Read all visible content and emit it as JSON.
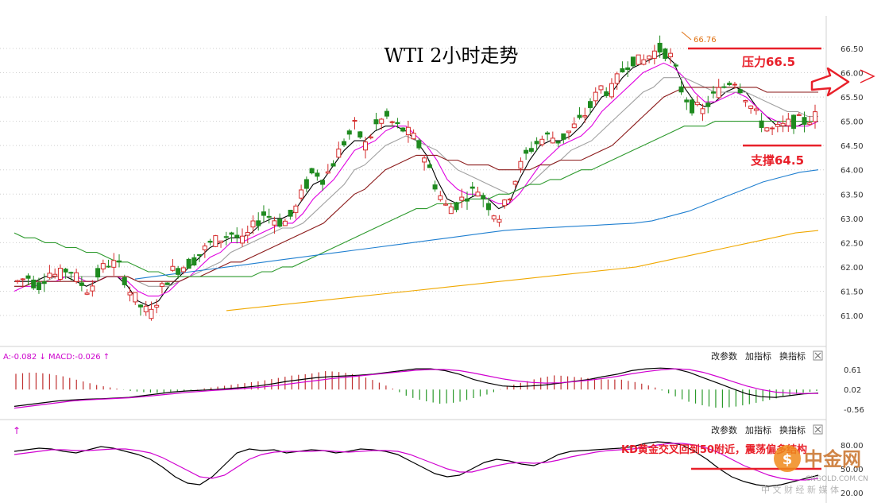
{
  "chart_data": [
    {
      "type": "candlestick",
      "title": "WTI 2小时走势",
      "y_ticks": [
        "66.50",
        "66.00",
        "65.50",
        "65.00",
        "64.50",
        "64.00",
        "63.50",
        "63.00",
        "62.50",
        "62.00",
        "61.50",
        "61.00"
      ],
      "ylim": [
        60.6,
        67.0
      ],
      "grid": true,
      "high_marker": "66.76",
      "resistance": {
        "label": "压力66.5",
        "value": 66.5
      },
      "support": {
        "label": "支撑64.5",
        "value": 64.5
      },
      "close_path": [
        61.7,
        61.8,
        61.6,
        61.9,
        61.8,
        62.0,
        61.7,
        61.5,
        61.9,
        62.1,
        62.0,
        61.5,
        61.2,
        61.0,
        61.5,
        61.9,
        62.0,
        62.1,
        62.3,
        62.5,
        62.6,
        62.7,
        62.5,
        62.8,
        63.1,
        63.0,
        62.9,
        63.1,
        63.6,
        64.0,
        63.8,
        64.2,
        64.6,
        64.9,
        64.5,
        64.9,
        65.1,
        64.9,
        64.8,
        64.6,
        64.2,
        63.6,
        63.2,
        63.3,
        63.5,
        63.6,
        63.3,
        63.0,
        63.4,
        64.0,
        64.4,
        64.6,
        64.7,
        64.6,
        64.8,
        65.0,
        65.3,
        65.7,
        65.6,
        66.0,
        66.3,
        66.2,
        66.4,
        66.5,
        66.3,
        65.6,
        65.3,
        65.2,
        65.5,
        65.7,
        65.9,
        65.6,
        65.2,
        64.9,
        64.8,
        64.9,
        65.0,
        65.0,
        65.1
      ],
      "ma_lines": [
        {
          "color": "#000000",
          "values": [
            61.7,
            61.7,
            61.7,
            61.8,
            61.8,
            61.8,
            61.7,
            61.6,
            61.7,
            61.8,
            61.8,
            61.6,
            61.3,
            61.2,
            61.3,
            61.6,
            61.8,
            62.0,
            62.2,
            62.4,
            62.5,
            62.6,
            62.6,
            62.7,
            62.9,
            63.0,
            63.0,
            63.1,
            63.4,
            63.7,
            63.8,
            64.1,
            64.4,
            64.6,
            64.6,
            64.8,
            64.9,
            64.9,
            64.8,
            64.6,
            64.3,
            63.8,
            63.4,
            63.3,
            63.4,
            63.5,
            63.4,
            63.2,
            63.3,
            63.8,
            64.2,
            64.5,
            64.6,
            64.6,
            64.7,
            64.9,
            65.2,
            65.5,
            65.6,
            65.9,
            66.1,
            66.2,
            66.3,
            66.4,
            66.2,
            65.7,
            65.4,
            65.3,
            65.4,
            65.6,
            65.7,
            65.6,
            65.3,
            65.1,
            64.9,
            64.9,
            64.9,
            65.0,
            65.0
          ]
        },
        {
          "color": "#e000e0",
          "values": [
            61.5,
            61.6,
            61.6,
            61.7,
            61.7,
            61.8,
            61.8,
            61.7,
            61.7,
            61.8,
            61.8,
            61.7,
            61.5,
            61.4,
            61.4,
            61.5,
            61.7,
            61.8,
            62.0,
            62.2,
            62.3,
            62.5,
            62.5,
            62.6,
            62.7,
            62.8,
            62.9,
            62.9,
            63.1,
            63.4,
            63.6,
            63.8,
            64.1,
            64.4,
            64.5,
            64.6,
            64.8,
            64.9,
            64.9,
            64.7,
            64.5,
            64.2,
            63.8,
            63.6,
            63.5,
            63.5,
            63.4,
            63.3,
            63.3,
            63.5,
            63.8,
            64.1,
            64.3,
            64.5,
            64.6,
            64.7,
            64.9,
            65.2,
            65.4,
            65.6,
            65.8,
            66.0,
            66.1,
            66.2,
            66.1,
            65.9,
            65.6,
            65.4,
            65.4,
            65.5,
            65.6,
            65.5,
            65.3,
            65.1,
            65.0,
            64.9,
            64.9,
            64.9,
            65.0
          ]
        },
        {
          "color": "#a0a0a0",
          "values": [
            61.6,
            61.6,
            61.7,
            61.7,
            61.8,
            61.8,
            61.8,
            61.8,
            61.8,
            61.8,
            61.8,
            61.8,
            61.7,
            61.6,
            61.6,
            61.6,
            61.7,
            61.8,
            61.9,
            62.0,
            62.1,
            62.3,
            62.4,
            62.5,
            62.6,
            62.7,
            62.8,
            62.8,
            62.9,
            63.1,
            63.3,
            63.5,
            63.7,
            64.0,
            64.1,
            64.3,
            64.5,
            64.6,
            64.7,
            64.6,
            64.5,
            64.4,
            64.2,
            64.0,
            63.9,
            63.8,
            63.7,
            63.6,
            63.5,
            63.6,
            63.7,
            63.9,
            64.1,
            64.2,
            64.4,
            64.5,
            64.6,
            64.8,
            65.0,
            65.2,
            65.4,
            65.6,
            65.7,
            65.9,
            65.9,
            65.9,
            65.8,
            65.7,
            65.6,
            65.6,
            65.6,
            65.6,
            65.5,
            65.4,
            65.3,
            65.2,
            65.2,
            65.1,
            65.1
          ]
        },
        {
          "color": "#8b1a1a",
          "values": [
            61.6,
            61.6,
            61.7,
            61.7,
            61.7,
            61.7,
            61.7,
            61.7,
            61.7,
            61.8,
            61.8,
            61.8,
            61.7,
            61.7,
            61.7,
            61.7,
            61.7,
            61.8,
            61.8,
            61.9,
            62.0,
            62.1,
            62.1,
            62.2,
            62.3,
            62.4,
            62.5,
            62.6,
            62.7,
            62.8,
            62.9,
            63.1,
            63.3,
            63.5,
            63.6,
            63.8,
            64.0,
            64.1,
            64.2,
            64.3,
            64.3,
            64.3,
            64.2,
            64.2,
            64.1,
            64.1,
            64.1,
            64.0,
            64.0,
            64.0,
            64.0,
            64.1,
            64.1,
            64.2,
            64.2,
            64.2,
            64.3,
            64.4,
            64.5,
            64.7,
            64.9,
            65.1,
            65.3,
            65.5,
            65.6,
            65.7,
            65.7,
            65.7,
            65.7,
            65.7,
            65.7,
            65.7,
            65.7,
            65.6,
            65.6,
            65.6,
            65.6,
            65.6,
            65.6
          ]
        },
        {
          "color": "#2e9a2e",
          "values": [
            62.7,
            62.6,
            62.6,
            62.5,
            62.5,
            62.4,
            62.4,
            62.3,
            62.3,
            62.2,
            62.1,
            62.1,
            62.0,
            61.9,
            61.9,
            61.8,
            61.8,
            61.8,
            61.8,
            61.8,
            61.8,
            61.8,
            61.8,
            61.8,
            61.9,
            61.9,
            62.0,
            62.0,
            62.1,
            62.2,
            62.3,
            62.4,
            62.5,
            62.6,
            62.7,
            62.8,
            62.9,
            63.0,
            63.1,
            63.2,
            63.2,
            63.3,
            63.3,
            63.3,
            63.4,
            63.4,
            63.4,
            63.5,
            63.5,
            63.6,
            63.7,
            63.7,
            63.8,
            63.8,
            63.9,
            64.0,
            64.0,
            64.1,
            64.2,
            64.3,
            64.4,
            64.5,
            64.6,
            64.7,
            64.8,
            64.9,
            64.9,
            64.9,
            65.0,
            65.0,
            65.0,
            65.0,
            65.0,
            65.0,
            65.0,
            65.0,
            65.0,
            65.0,
            65.0
          ]
        },
        {
          "color": "#1f7fd0",
          "values": [
            61.75,
            61.8,
            61.85,
            61.9,
            61.95,
            62.0,
            62.05,
            62.1,
            62.15,
            62.2,
            62.25,
            62.3,
            62.35,
            62.4,
            62.45,
            62.5,
            62.55,
            62.6,
            62.65,
            62.7,
            62.75,
            62.78,
            62.8,
            62.82,
            62.84,
            62.86,
            62.88,
            62.9,
            62.95,
            63.05,
            63.15,
            63.3,
            63.45,
            63.6,
            63.75,
            63.85,
            63.95,
            64.0
          ]
        },
        {
          "color": "#f0a800",
          "values": [
            61.1,
            61.15,
            61.2,
            61.25,
            61.3,
            61.35,
            61.4,
            61.45,
            61.5,
            61.55,
            61.6,
            61.65,
            61.7,
            61.75,
            61.8,
            61.85,
            61.9,
            61.95,
            62.0,
            62.1,
            62.2,
            62.3,
            62.4,
            62.5,
            62.6,
            62.7,
            62.75
          ]
        }
      ]
    },
    {
      "type": "line",
      "legend_text": "A:-0.082 ↓ MACD:-0.026 ↑",
      "y_ticks": [
        "0.61",
        "0.02",
        "-0.56"
      ],
      "ylim": [
        -0.7,
        0.75
      ],
      "buttons": [
        "改参数",
        "加指标",
        "换指标"
      ],
      "dif": [
        -0.45,
        -0.4,
        -0.35,
        -0.3,
        -0.27,
        -0.25,
        -0.24,
        -0.22,
        -0.2,
        -0.15,
        -0.1,
        -0.05,
        -0.02,
        0.0,
        0.02,
        0.05,
        0.08,
        0.12,
        0.18,
        0.25,
        0.3,
        0.35,
        0.38,
        0.4,
        0.42,
        0.45,
        0.5,
        0.55,
        0.6,
        0.6,
        0.55,
        0.45,
        0.3,
        0.2,
        0.12,
        0.1,
        0.12,
        0.15,
        0.2,
        0.25,
        0.3,
        0.38,
        0.45,
        0.55,
        0.6,
        0.62,
        0.6,
        0.5,
        0.35,
        0.2,
        0.05,
        -0.1,
        -0.18,
        -0.2,
        -0.15,
        -0.1,
        -0.08
      ],
      "dea": [
        -0.5,
        -0.45,
        -0.4,
        -0.35,
        -0.3,
        -0.27,
        -0.25,
        -0.23,
        -0.21,
        -0.18,
        -0.14,
        -0.1,
        -0.06,
        -0.03,
        0.0,
        0.02,
        0.05,
        0.08,
        0.12,
        0.17,
        0.22,
        0.27,
        0.32,
        0.36,
        0.4,
        0.44,
        0.48,
        0.52,
        0.56,
        0.58,
        0.58,
        0.55,
        0.48,
        0.4,
        0.32,
        0.26,
        0.22,
        0.2,
        0.21,
        0.24,
        0.28,
        0.33,
        0.39,
        0.46,
        0.52,
        0.57,
        0.6,
        0.58,
        0.5,
        0.38,
        0.25,
        0.12,
        0.02,
        -0.05,
        -0.08,
        -0.09,
        -0.09
      ],
      "hist": [
        0.22,
        0.24,
        0.22,
        0.18,
        0.12,
        0.06,
        0.02,
        -0.02,
        -0.04,
        -0.05,
        -0.03,
        0.0,
        0.03,
        0.06,
        0.09,
        0.12,
        0.16,
        0.2,
        0.22,
        0.26,
        0.24,
        0.2,
        0.12,
        0.02,
        -0.1,
        -0.16,
        -0.2,
        -0.18,
        -0.12,
        -0.06,
        0.04,
        0.1,
        0.16,
        0.2,
        0.18,
        0.16,
        0.14,
        0.14,
        0.1,
        0.04,
        -0.06,
        -0.16,
        -0.22,
        -0.26,
        -0.24,
        -0.2,
        -0.15,
        -0.1,
        -0.05,
        -0.02
      ]
    },
    {
      "type": "line",
      "legend_text": "↑",
      "y_ticks": [
        "80.00",
        "50.00",
        "20.00"
      ],
      "ylim": [
        15,
        90
      ],
      "buttons": [
        "改参数",
        "加指标",
        "换指标"
      ],
      "annotation": "KD黄金交叉回到50附近，震荡偏多结构",
      "k": [
        72,
        74,
        76,
        75,
        72,
        70,
        74,
        78,
        76,
        72,
        68,
        62,
        52,
        40,
        32,
        30,
        40,
        55,
        70,
        75,
        73,
        74,
        70,
        72,
        74,
        73,
        70,
        72,
        75,
        74,
        72,
        68,
        60,
        52,
        44,
        40,
        42,
        50,
        58,
        62,
        60,
        56,
        54,
        60,
        68,
        72,
        73,
        74,
        75,
        76,
        78,
        82,
        84,
        83,
        80,
        72,
        62,
        50,
        40,
        34,
        30,
        28,
        30,
        34,
        38,
        42
      ],
      "d": [
        68,
        70,
        72,
        74,
        74,
        73,
        73,
        74,
        75,
        75,
        73,
        70,
        64,
        56,
        48,
        40,
        38,
        42,
        52,
        62,
        68,
        71,
        72,
        72,
        72,
        73,
        72,
        71,
        72,
        73,
        73,
        72,
        68,
        62,
        56,
        50,
        46,
        46,
        50,
        54,
        57,
        58,
        57,
        58,
        61,
        65,
        68,
        71,
        73,
        74,
        75,
        77,
        80,
        82,
        82,
        80,
        76,
        70,
        62,
        54,
        48,
        42,
        38,
        36,
        36,
        38
      ]
    }
  ],
  "watermark": {
    "brand": "中金网",
    "url": "CNGOLD.COM.CN",
    "tagline": "中 文 财 经 新 媒 体"
  }
}
